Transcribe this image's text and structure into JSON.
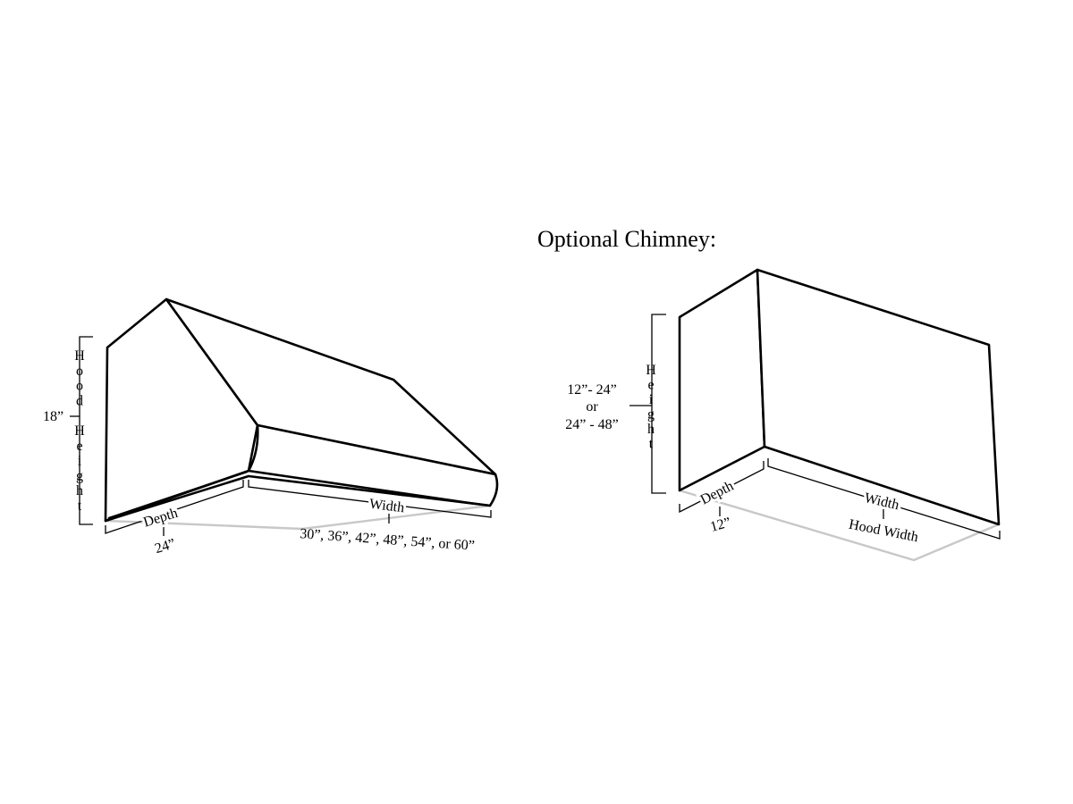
{
  "hood": {
    "vertical_label": "Hood Height",
    "height_value": "18”",
    "depth_label": "Depth",
    "depth_value": "24”",
    "width_label": "Width",
    "width_values": "30”, 36”, 42”, 48”, 54”, or 60”"
  },
  "chimney": {
    "title": "Optional Chimney:",
    "vertical_label": "Height",
    "height_option_1": "12”- 24”",
    "height_or": "or",
    "height_option_2": "24” - 48”",
    "depth_label": "Depth",
    "depth_value": "12”",
    "width_label": "Width",
    "width_value": "Hood Width"
  },
  "colors": {
    "line": "#000000",
    "ghost": "#c8c8c8",
    "background": "#ffffff"
  }
}
